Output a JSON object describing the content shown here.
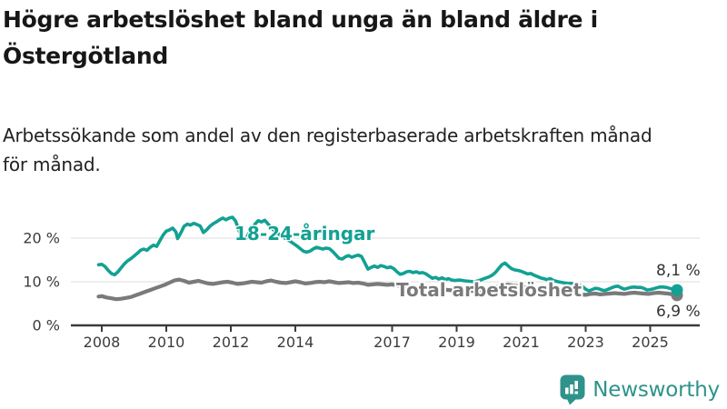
{
  "header": {
    "title_lines": [
      "Högre arbetslöshet bland unga än bland äldre i",
      "Östergötland"
    ],
    "subtitle_lines": [
      "Arbetssökande som andel av den registerbaserade arbetskraften månad",
      "för månad."
    ]
  },
  "footer": {
    "brand": "Newsworthy",
    "brand_color": "#2f938b"
  },
  "colors": {
    "background": "#ffffff",
    "youth_line": "#12a192",
    "total_line": "#7a7a7a",
    "gridline": "#dcdcdc",
    "axis": "#3a3a3a",
    "text": "#212121"
  },
  "chart_data": {
    "type": "line",
    "title": "Högre arbetslöshet bland unga än bland äldre i Östergötland",
    "subtitle": "Arbetssökande som andel av den registerbaserade arbetskraften månad för månad.",
    "xlabel": "",
    "ylabel": "",
    "grid": "horizontal",
    "legend_position": "inline-labels",
    "x_range": [
      2007.9,
      2025.83
    ],
    "ylim": [
      0,
      26
    ],
    "x_axis": {
      "ticks": [
        [
          2008,
          "2008"
        ],
        [
          2010,
          "2010"
        ],
        [
          2012,
          "2012"
        ],
        [
          2014,
          "2014"
        ],
        [
          2017,
          "2017"
        ],
        [
          2019,
          "2019"
        ],
        [
          2021,
          "2021"
        ],
        [
          2023,
          "2023"
        ],
        [
          2025,
          "2025"
        ]
      ]
    },
    "y_axis": {
      "ticks": [
        [
          0,
          "0 %"
        ],
        [
          10,
          "10 %"
        ],
        [
          20,
          "20 %"
        ]
      ]
    },
    "series": [
      {
        "name": "18-24-åringar",
        "color": "#12a192",
        "end_label": "8,1 %",
        "last_value": 8.1,
        "points": [
          [
            2007.9,
            13.9
          ],
          [
            2008.0,
            14.0
          ],
          [
            2008.1,
            13.5
          ],
          [
            2008.2,
            12.6
          ],
          [
            2008.3,
            11.9
          ],
          [
            2008.4,
            11.6
          ],
          [
            2008.5,
            12.3
          ],
          [
            2008.6,
            13.2
          ],
          [
            2008.7,
            14.1
          ],
          [
            2008.8,
            14.8
          ],
          [
            2008.9,
            15.3
          ],
          [
            2009.0,
            15.9
          ],
          [
            2009.1,
            16.5
          ],
          [
            2009.2,
            17.2
          ],
          [
            2009.3,
            17.5
          ],
          [
            2009.4,
            17.2
          ],
          [
            2009.5,
            17.9
          ],
          [
            2009.6,
            18.4
          ],
          [
            2009.7,
            18.1
          ],
          [
            2009.8,
            19.4
          ],
          [
            2009.9,
            20.7
          ],
          [
            2010.0,
            21.6
          ],
          [
            2010.1,
            21.9
          ],
          [
            2010.2,
            22.3
          ],
          [
            2010.3,
            21.4
          ],
          [
            2010.35,
            19.9
          ],
          [
            2010.45,
            21.2
          ],
          [
            2010.55,
            22.7
          ],
          [
            2010.65,
            23.2
          ],
          [
            2010.75,
            23.0
          ],
          [
            2010.85,
            23.4
          ],
          [
            2010.95,
            23.1
          ],
          [
            2011.05,
            22.8
          ],
          [
            2011.15,
            21.3
          ],
          [
            2011.25,
            21.9
          ],
          [
            2011.35,
            22.7
          ],
          [
            2011.45,
            23.3
          ],
          [
            2011.55,
            23.7
          ],
          [
            2011.65,
            24.2
          ],
          [
            2011.75,
            24.6
          ],
          [
            2011.85,
            24.2
          ],
          [
            2011.95,
            24.6
          ],
          [
            2012.05,
            24.8
          ],
          [
            2012.15,
            23.9
          ],
          [
            2012.25,
            21.8
          ],
          [
            2012.35,
            20.1
          ],
          [
            2012.45,
            19.7
          ],
          [
            2012.55,
            20.9
          ],
          [
            2012.65,
            22.1
          ],
          [
            2012.75,
            23.2
          ],
          [
            2012.85,
            24.0
          ],
          [
            2012.95,
            23.7
          ],
          [
            2013.05,
            24.1
          ],
          [
            2013.15,
            23.3
          ],
          [
            2013.25,
            22.4
          ],
          [
            2013.35,
            21.7
          ],
          [
            2013.45,
            21.1
          ],
          [
            2013.55,
            20.6
          ],
          [
            2013.65,
            20.1
          ],
          [
            2013.75,
            19.7
          ],
          [
            2013.85,
            19.2
          ],
          [
            2013.95,
            18.7
          ],
          [
            2014.05,
            18.2
          ],
          [
            2014.15,
            17.6
          ],
          [
            2014.25,
            17.0
          ],
          [
            2014.35,
            16.8
          ],
          [
            2014.45,
            17.0
          ],
          [
            2014.55,
            17.5
          ],
          [
            2014.65,
            17.9
          ],
          [
            2014.75,
            17.7
          ],
          [
            2014.85,
            17.5
          ],
          [
            2014.95,
            17.7
          ],
          [
            2015.05,
            17.6
          ],
          [
            2015.15,
            17.0
          ],
          [
            2015.25,
            16.2
          ],
          [
            2015.35,
            15.4
          ],
          [
            2015.45,
            15.2
          ],
          [
            2015.55,
            15.7
          ],
          [
            2015.65,
            16.0
          ],
          [
            2015.75,
            15.6
          ],
          [
            2015.85,
            15.9
          ],
          [
            2015.95,
            16.1
          ],
          [
            2016.05,
            15.8
          ],
          [
            2016.15,
            14.4
          ],
          [
            2016.25,
            12.9
          ],
          [
            2016.35,
            13.3
          ],
          [
            2016.45,
            13.6
          ],
          [
            2016.55,
            13.3
          ],
          [
            2016.65,
            13.7
          ],
          [
            2016.75,
            13.5
          ],
          [
            2016.85,
            13.2
          ],
          [
            2016.95,
            13.4
          ],
          [
            2017.05,
            13.0
          ],
          [
            2017.15,
            12.3
          ],
          [
            2017.25,
            11.7
          ],
          [
            2017.35,
            11.9
          ],
          [
            2017.45,
            12.3
          ],
          [
            2017.55,
            12.4
          ],
          [
            2017.65,
            12.1
          ],
          [
            2017.75,
            12.3
          ],
          [
            2017.85,
            12.0
          ],
          [
            2017.95,
            12.1
          ],
          [
            2018.05,
            11.8
          ],
          [
            2018.15,
            11.3
          ],
          [
            2018.25,
            10.8
          ],
          [
            2018.35,
            11.0
          ],
          [
            2018.45,
            10.6
          ],
          [
            2018.55,
            10.9
          ],
          [
            2018.65,
            10.5
          ],
          [
            2018.75,
            10.7
          ],
          [
            2018.85,
            10.4
          ],
          [
            2018.95,
            10.3
          ],
          [
            2019.1,
            10.4
          ],
          [
            2019.25,
            10.2
          ],
          [
            2019.4,
            10.1
          ],
          [
            2019.55,
            10.0
          ],
          [
            2019.7,
            10.3
          ],
          [
            2019.85,
            10.7
          ],
          [
            2020.0,
            11.1
          ],
          [
            2020.1,
            11.5
          ],
          [
            2020.2,
            12.1
          ],
          [
            2020.3,
            13.0
          ],
          [
            2020.4,
            13.9
          ],
          [
            2020.5,
            14.3
          ],
          [
            2020.6,
            13.6
          ],
          [
            2020.7,
            13.0
          ],
          [
            2020.8,
            12.7
          ],
          [
            2020.9,
            12.6
          ],
          [
            2021.0,
            12.4
          ],
          [
            2021.1,
            12.1
          ],
          [
            2021.2,
            11.8
          ],
          [
            2021.3,
            11.9
          ],
          [
            2021.4,
            11.5
          ],
          [
            2021.5,
            11.2
          ],
          [
            2021.6,
            10.9
          ],
          [
            2021.7,
            10.7
          ],
          [
            2021.8,
            10.5
          ],
          [
            2021.9,
            10.7
          ],
          [
            2022.0,
            10.3
          ],
          [
            2022.15,
            10.0
          ],
          [
            2022.3,
            9.8
          ],
          [
            2022.45,
            9.6
          ],
          [
            2022.6,
            9.6
          ],
          [
            2022.75,
            9.4
          ],
          [
            2022.9,
            8.9
          ],
          [
            2023.0,
            8.3
          ],
          [
            2023.1,
            7.9
          ],
          [
            2023.2,
            8.2
          ],
          [
            2023.3,
            8.5
          ],
          [
            2023.4,
            8.4
          ],
          [
            2023.5,
            8.1
          ],
          [
            2023.6,
            8.0
          ],
          [
            2023.7,
            8.3
          ],
          [
            2023.8,
            8.6
          ],
          [
            2023.9,
            8.9
          ],
          [
            2024.0,
            9.0
          ],
          [
            2024.1,
            8.6
          ],
          [
            2024.2,
            8.3
          ],
          [
            2024.3,
            8.5
          ],
          [
            2024.4,
            8.7
          ],
          [
            2024.5,
            8.8
          ],
          [
            2024.6,
            8.7
          ],
          [
            2024.7,
            8.7
          ],
          [
            2024.8,
            8.5
          ],
          [
            2024.9,
            8.1
          ],
          [
            2025.0,
            8.2
          ],
          [
            2025.1,
            8.4
          ],
          [
            2025.2,
            8.6
          ],
          [
            2025.3,
            8.8
          ],
          [
            2025.4,
            8.8
          ],
          [
            2025.5,
            8.7
          ],
          [
            2025.6,
            8.5
          ],
          [
            2025.7,
            8.3
          ],
          [
            2025.83,
            8.1
          ]
        ]
      },
      {
        "name": "Total arbetslöshet",
        "color": "#7a7a7a",
        "end_label": "6,9 %",
        "last_value": 6.9,
        "points": [
          [
            2007.9,
            6.6
          ],
          [
            2008.0,
            6.7
          ],
          [
            2008.15,
            6.4
          ],
          [
            2008.3,
            6.2
          ],
          [
            2008.45,
            6.0
          ],
          [
            2008.6,
            6.1
          ],
          [
            2008.75,
            6.3
          ],
          [
            2008.9,
            6.5
          ],
          [
            2009.05,
            6.9
          ],
          [
            2009.2,
            7.3
          ],
          [
            2009.35,
            7.7
          ],
          [
            2009.5,
            8.1
          ],
          [
            2009.65,
            8.5
          ],
          [
            2009.8,
            8.9
          ],
          [
            2009.95,
            9.3
          ],
          [
            2010.1,
            9.8
          ],
          [
            2010.25,
            10.3
          ],
          [
            2010.4,
            10.5
          ],
          [
            2010.55,
            10.2
          ],
          [
            2010.7,
            9.8
          ],
          [
            2010.85,
            10.0
          ],
          [
            2011.0,
            10.2
          ],
          [
            2011.15,
            9.9
          ],
          [
            2011.3,
            9.6
          ],
          [
            2011.45,
            9.5
          ],
          [
            2011.6,
            9.7
          ],
          [
            2011.75,
            9.9
          ],
          [
            2011.9,
            10.0
          ],
          [
            2012.05,
            9.8
          ],
          [
            2012.2,
            9.5
          ],
          [
            2012.35,
            9.6
          ],
          [
            2012.5,
            9.8
          ],
          [
            2012.65,
            10.0
          ],
          [
            2012.8,
            9.9
          ],
          [
            2012.95,
            9.8
          ],
          [
            2013.1,
            10.1
          ],
          [
            2013.25,
            10.3
          ],
          [
            2013.4,
            10.0
          ],
          [
            2013.55,
            9.8
          ],
          [
            2013.7,
            9.7
          ],
          [
            2013.85,
            9.9
          ],
          [
            2014.0,
            10.1
          ],
          [
            2014.15,
            9.9
          ],
          [
            2014.3,
            9.6
          ],
          [
            2014.45,
            9.7
          ],
          [
            2014.6,
            9.9
          ],
          [
            2014.75,
            10.0
          ],
          [
            2014.9,
            9.9
          ],
          [
            2015.05,
            10.1
          ],
          [
            2015.2,
            9.9
          ],
          [
            2015.35,
            9.7
          ],
          [
            2015.5,
            9.8
          ],
          [
            2015.65,
            9.9
          ],
          [
            2015.8,
            9.7
          ],
          [
            2015.95,
            9.8
          ],
          [
            2016.1,
            9.6
          ],
          [
            2016.25,
            9.3
          ],
          [
            2016.4,
            9.4
          ],
          [
            2016.55,
            9.5
          ],
          [
            2016.7,
            9.4
          ],
          [
            2016.85,
            9.3
          ],
          [
            2017.0,
            9.4
          ],
          [
            2017.2,
            9.1
          ],
          [
            2017.4,
            9.0
          ],
          [
            2017.6,
            8.9
          ],
          [
            2017.8,
            8.7
          ],
          [
            2018.0,
            8.6
          ],
          [
            2018.25,
            8.4
          ],
          [
            2018.5,
            8.3
          ],
          [
            2018.75,
            8.1
          ],
          [
            2019.0,
            8.0
          ],
          [
            2019.25,
            7.9
          ],
          [
            2019.5,
            7.9
          ],
          [
            2019.75,
            8.0
          ],
          [
            2020.0,
            8.3
          ],
          [
            2020.2,
            8.7
          ],
          [
            2020.4,
            9.2
          ],
          [
            2020.6,
            9.3
          ],
          [
            2020.8,
            9.1
          ],
          [
            2021.0,
            8.9
          ],
          [
            2021.2,
            8.6
          ],
          [
            2021.4,
            8.4
          ],
          [
            2021.6,
            8.2
          ],
          [
            2021.8,
            8.0
          ],
          [
            2022.0,
            7.8
          ],
          [
            2022.2,
            7.5
          ],
          [
            2022.4,
            7.3
          ],
          [
            2022.6,
            7.2
          ],
          [
            2022.8,
            7.1
          ],
          [
            2023.0,
            7.0
          ],
          [
            2023.15,
            7.2
          ],
          [
            2023.3,
            7.3
          ],
          [
            2023.45,
            7.1
          ],
          [
            2023.6,
            7.2
          ],
          [
            2023.75,
            7.3
          ],
          [
            2023.9,
            7.4
          ],
          [
            2024.05,
            7.3
          ],
          [
            2024.2,
            7.2
          ],
          [
            2024.35,
            7.4
          ],
          [
            2024.5,
            7.5
          ],
          [
            2024.65,
            7.4
          ],
          [
            2024.8,
            7.3
          ],
          [
            2024.95,
            7.2
          ],
          [
            2025.1,
            7.4
          ],
          [
            2025.25,
            7.5
          ],
          [
            2025.4,
            7.4
          ],
          [
            2025.55,
            7.3
          ],
          [
            2025.7,
            7.1
          ],
          [
            2025.83,
            6.9
          ]
        ]
      }
    ]
  }
}
